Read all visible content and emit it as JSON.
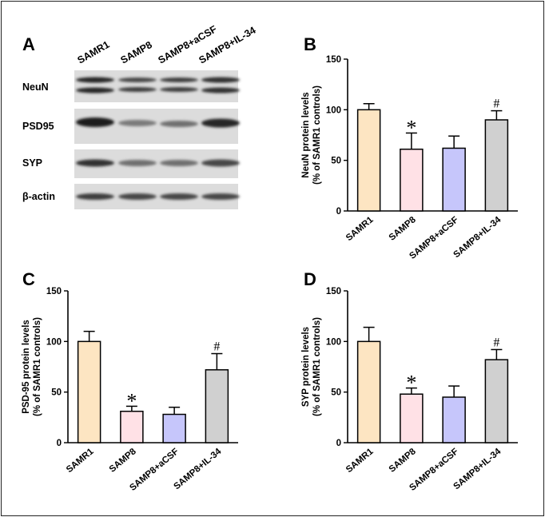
{
  "panels": {
    "A": "A",
    "B": "B",
    "C": "C",
    "D": "D"
  },
  "blot": {
    "lanes": [
      "SAMR1",
      "SAMP8",
      "SAMP8+aCSF",
      "SAMP8+IL-34"
    ],
    "proteins": [
      "NeuN",
      "PSD95",
      "SYP",
      "β-actin"
    ]
  },
  "chart_data": [
    {
      "panel": "B",
      "type": "bar",
      "categories": [
        "SAMR1",
        "SAMP8",
        "SAMP8+aCSF",
        "SAMP8+IL-34"
      ],
      "values": [
        100,
        61,
        62,
        90
      ],
      "errors": [
        6,
        16,
        12,
        9
      ],
      "significance": [
        "",
        "*",
        "",
        "#"
      ],
      "ylabel_line1": "NeuN protein levels",
      "ylabel_line2": "(% of SAMR1 controls)",
      "ylim": [
        0,
        150
      ],
      "yticks": [
        0,
        50,
        100,
        150
      ],
      "colors": [
        "#fde5c2",
        "#ffe1e6",
        "#c6c6fb",
        "#d0d0d0"
      ]
    },
    {
      "panel": "C",
      "type": "bar",
      "categories": [
        "SAMR1",
        "SAMP8",
        "SAMP8+aCSF",
        "SAMP8+IL-34"
      ],
      "values": [
        100,
        31,
        28,
        72
      ],
      "errors": [
        10,
        5,
        7,
        16
      ],
      "significance": [
        "",
        "*",
        "",
        "#"
      ],
      "ylabel_line1": "PSD-95 protein levels",
      "ylabel_line2": "(% of SAMR1 controls)",
      "ylim": [
        0,
        150
      ],
      "yticks": [
        0,
        50,
        100,
        150
      ],
      "colors": [
        "#fde5c2",
        "#ffe1e6",
        "#c6c6fb",
        "#d0d0d0"
      ]
    },
    {
      "panel": "D",
      "type": "bar",
      "categories": [
        "SAMR1",
        "SAMP8",
        "SAMP8+aCSF",
        "SAMP8+IL-34"
      ],
      "values": [
        100,
        48,
        45,
        82
      ],
      "errors": [
        14,
        6,
        11,
        10
      ],
      "significance": [
        "",
        "*",
        "",
        "#"
      ],
      "ylabel_line1": "SYP protein levels",
      "ylabel_line2": "(% of SAMR1 controls)",
      "ylim": [
        0,
        150
      ],
      "yticks": [
        0,
        50,
        100,
        150
      ],
      "colors": [
        "#fde5c2",
        "#ffe1e6",
        "#c6c6fb",
        "#d0d0d0"
      ]
    }
  ]
}
